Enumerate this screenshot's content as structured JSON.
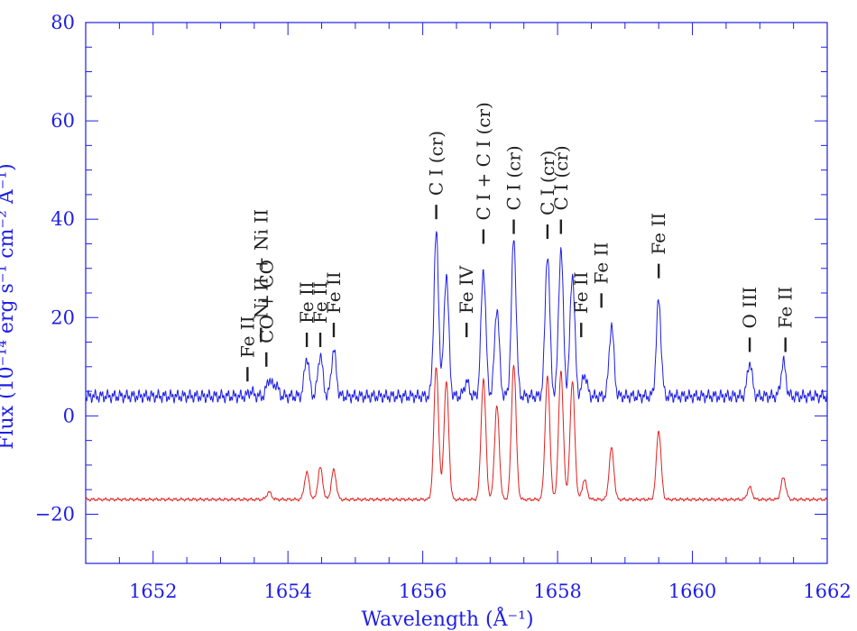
{
  "colors": {
    "axis": "#1e1ee6",
    "blue_series": "#1e1ee6",
    "red_series": "#e02020",
    "annotation": "#222222"
  },
  "chart_data": {
    "type": "line",
    "title": "",
    "xlabel": "Wavelength (Å⁻¹)",
    "ylabel": "Flux (10⁻¹⁴ erg s⁻¹ cm⁻² Å⁻¹)",
    "xlim": [
      1651.0,
      1662.0
    ],
    "ylim": [
      -30,
      80
    ],
    "xticks": [
      1652,
      1654,
      1656,
      1658,
      1660,
      1662
    ],
    "xtick_labels": [
      "1652",
      "1654",
      "1656",
      "1658",
      "1660",
      "1662"
    ],
    "yticks": [
      -20,
      0,
      20,
      40,
      60,
      80
    ],
    "ytick_labels": [
      "−20",
      "0",
      "20",
      "40",
      "60",
      "80"
    ],
    "grid": false,
    "series": [
      {
        "color": "#1e1ee6",
        "baseline": 4,
        "lines": [
          {
            "x": 1653.45,
            "amp": 1.0
          },
          {
            "x": 1653.72,
            "amp": 3.5
          },
          {
            "x": 1653.82,
            "amp": 2.5
          },
          {
            "x": 1654.28,
            "amp": 8.0
          },
          {
            "x": 1654.48,
            "amp": 8.5
          },
          {
            "x": 1654.68,
            "amp": 9.5
          },
          {
            "x": 1656.2,
            "amp": 33.0
          },
          {
            "x": 1656.35,
            "amp": 25.0
          },
          {
            "x": 1656.65,
            "amp": 3.0
          },
          {
            "x": 1656.9,
            "amp": 26.0
          },
          {
            "x": 1657.1,
            "amp": 18.0
          },
          {
            "x": 1657.35,
            "amp": 32.0
          },
          {
            "x": 1657.85,
            "amp": 29.0
          },
          {
            "x": 1658.05,
            "amp": 30.0
          },
          {
            "x": 1658.22,
            "amp": 25.0
          },
          {
            "x": 1658.4,
            "amp": 4.5
          },
          {
            "x": 1658.8,
            "amp": 14.5
          },
          {
            "x": 1659.5,
            "amp": 19.5
          },
          {
            "x": 1660.85,
            "amp": 7.0
          },
          {
            "x": 1661.35,
            "amp": 7.0
          }
        ]
      },
      {
        "color": "#e02020",
        "baseline": -17,
        "lines": [
          {
            "x": 1653.72,
            "amp": 1.5
          },
          {
            "x": 1654.28,
            "amp": 5.5
          },
          {
            "x": 1654.48,
            "amp": 6.5
          },
          {
            "x": 1654.68,
            "amp": 6.0
          },
          {
            "x": 1656.2,
            "amp": 27.0
          },
          {
            "x": 1656.35,
            "amp": 24.0
          },
          {
            "x": 1656.9,
            "amp": 24.5
          },
          {
            "x": 1657.1,
            "amp": 19.0
          },
          {
            "x": 1657.35,
            "amp": 27.5
          },
          {
            "x": 1657.85,
            "amp": 25.0
          },
          {
            "x": 1658.05,
            "amp": 26.0
          },
          {
            "x": 1658.22,
            "amp": 24.0
          },
          {
            "x": 1658.4,
            "amp": 4.0
          },
          {
            "x": 1658.8,
            "amp": 10.5
          },
          {
            "x": 1659.5,
            "amp": 14.0
          },
          {
            "x": 1660.85,
            "amp": 2.5
          },
          {
            "x": 1661.35,
            "amp": 4.5
          }
        ]
      }
    ],
    "annotations": [
      {
        "label": "Fe II",
        "x": 1653.4,
        "y": 7
      },
      {
        "label": "CO + CO",
        "x": 1653.68,
        "y": 10
      },
      {
        "label": "Ni II + Ni II",
        "x": 1653.6,
        "y": 15
      },
      {
        "label": "Fe II",
        "x": 1654.28,
        "y": 14
      },
      {
        "label": "Fe II",
        "x": 1654.48,
        "y": 14
      },
      {
        "label": "Fe II",
        "x": 1654.68,
        "y": 16
      },
      {
        "label": "C I (cr)",
        "x": 1656.2,
        "y": 40
      },
      {
        "label": "Fe IV",
        "x": 1656.65,
        "y": 16
      },
      {
        "label": "C I + C I (cr)",
        "x": 1656.9,
        "y": 35
      },
      {
        "label": "C I (cr)",
        "x": 1657.35,
        "y": 37
      },
      {
        "label": "C I (cr)",
        "x": 1657.85,
        "y": 36
      },
      {
        "label": "C I (cr)",
        "x": 1658.05,
        "y": 37
      },
      {
        "label": "Fe II",
        "x": 1658.35,
        "y": 16
      },
      {
        "label": "Fe II",
        "x": 1658.65,
        "y": 22
      },
      {
        "label": "Fe II",
        "x": 1659.5,
        "y": 28
      },
      {
        "label": "O III",
        "x": 1660.85,
        "y": 13
      },
      {
        "label": "Fe II",
        "x": 1661.38,
        "y": 13
      }
    ]
  }
}
